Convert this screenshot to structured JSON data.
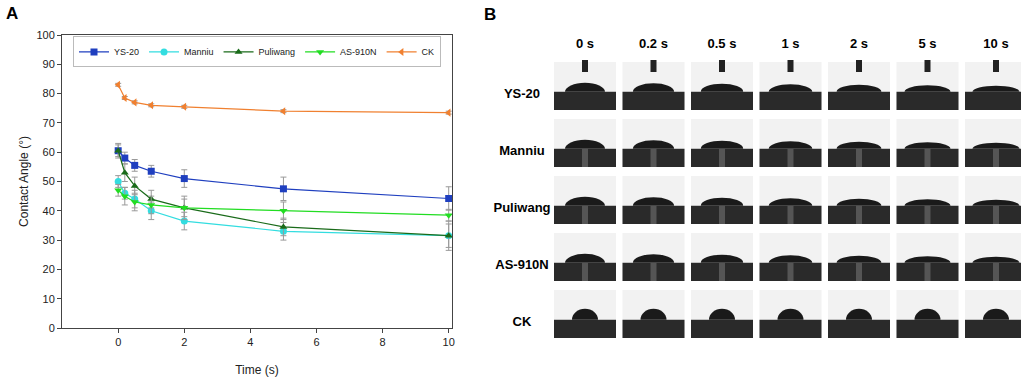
{
  "chart_data": {
    "type": "line",
    "panel": "A",
    "x_label": "Time (s)",
    "y_label": "Contact Angle (°)",
    "xlim": [
      -1.7,
      10.1
    ],
    "xticks": [
      0,
      2,
      4,
      6,
      8,
      10
    ],
    "ylim": [
      0,
      100
    ],
    "yticks": [
      0,
      10,
      20,
      30,
      40,
      50,
      60,
      70,
      80,
      90,
      100
    ],
    "grid": false,
    "legend": "top",
    "x": [
      0,
      0.2,
      0.5,
      1,
      2,
      5,
      10
    ],
    "series": [
      {
        "name": "YS-20",
        "color": "#1f3fbf",
        "marker": "square",
        "line_style": "solid",
        "values": [
          60.5,
          58,
          55.5,
          53.5,
          51,
          47.5,
          44.2
        ],
        "errors": [
          2.5,
          2,
          2,
          2,
          3,
          4,
          4
        ]
      },
      {
        "name": "Manniu",
        "color": "#33dde0",
        "marker": "circle",
        "line_style": "solid",
        "values": [
          50,
          46,
          44,
          40,
          36.5,
          33,
          31.5
        ],
        "errors": [
          2,
          2,
          3,
          3,
          3,
          3,
          5
        ]
      },
      {
        "name": "Puliwang",
        "color": "#1a6b1a",
        "marker": "triangle-up",
        "line_style": "solid",
        "values": [
          60.5,
          53,
          48.5,
          44,
          41,
          34.5,
          31.5
        ],
        "errors": [
          2,
          3,
          3,
          3,
          4,
          3,
          4
        ]
      },
      {
        "name": "AS-910N",
        "color": "#22dd22",
        "marker": "triangle-down",
        "line_style": "solid",
        "values": [
          47,
          45,
          43,
          42,
          41,
          40,
          38.5
        ],
        "errors": [
          2,
          3,
          3,
          3,
          3,
          3,
          2
        ]
      },
      {
        "name": "CK",
        "color": "#f08030",
        "marker": "triangle-left",
        "line_style": "solid",
        "values": [
          83,
          78.5,
          77,
          76,
          75.5,
          74,
          73.5
        ],
        "errors": [
          0.5,
          0.5,
          0.5,
          0.5,
          0.5,
          0.5,
          0.5
        ]
      }
    ]
  },
  "image_grid": {
    "panel": "B",
    "columns": [
      "0 s",
      "0.2 s",
      "0.5 s",
      "1 s",
      "2 s",
      "5 s",
      "10 s"
    ],
    "rows": [
      "YS-20",
      "Manniu",
      "Puliwang",
      "AS-910N",
      "CK"
    ]
  }
}
